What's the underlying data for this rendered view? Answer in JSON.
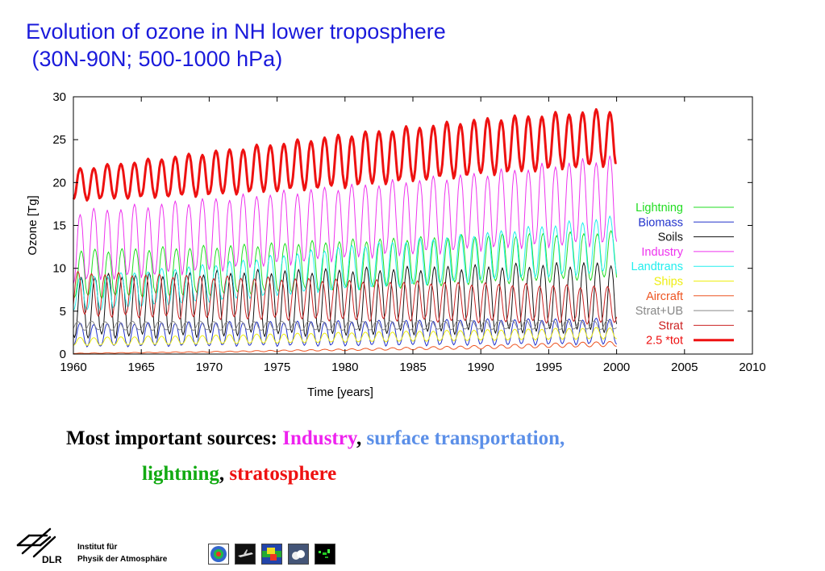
{
  "title": {
    "line1": "Evolution of ozone in NH lower troposphere",
    "line2": " (30N-90N; 500-1000 hPa)"
  },
  "chart_data": {
    "type": "line",
    "xlabel": "Time [years]",
    "ylabel": "Ozone [Tg]",
    "xlim": [
      1960,
      2010
    ],
    "ylim": [
      0,
      30
    ],
    "x_ticks": [
      1960,
      1965,
      1970,
      1975,
      1980,
      1985,
      1990,
      1995,
      2000,
      2005,
      2010
    ],
    "y_ticks": [
      0,
      5,
      10,
      15,
      20,
      25,
      30
    ],
    "grid": false,
    "legend_position": "right",
    "x_start": 1960,
    "x_end": 2000,
    "samples_per_year": 12,
    "series": [
      {
        "name": "Lightning",
        "color": "#22dd22",
        "linewidth": 1,
        "annual_min": [
          6.6,
          7.0,
          7.6,
          8.3,
          8.8
        ],
        "annual_max": [
          12.0,
          12.5,
          13.2,
          13.8,
          14.2
        ],
        "peak_month": 7
      },
      {
        "name": "Biomass",
        "color": "#2233cc",
        "linewidth": 1,
        "annual_min": [
          0.9,
          1.0,
          1.0,
          1.1,
          1.2
        ],
        "annual_max": [
          3.5,
          3.7,
          3.8,
          4.0,
          4.1
        ],
        "peak_month": 6
      },
      {
        "name": "Soils",
        "color": "#111111",
        "linewidth": 1,
        "annual_min": [
          2.0,
          2.2,
          2.4,
          2.6,
          2.8
        ],
        "annual_max": [
          9.0,
          9.5,
          9.8,
          10.2,
          10.6
        ],
        "peak_month": 7
      },
      {
        "name": "Industry",
        "color": "#ee33ee",
        "linewidth": 1,
        "annual_min": [
          8.5,
          9.8,
          11.2,
          12.3,
          13.0
        ],
        "annual_max": [
          16.5,
          18.0,
          19.5,
          21.0,
          23.0
        ],
        "peak_month": 6
      },
      {
        "name": "Landtrans",
        "color": "#22eeee",
        "linewidth": 1,
        "annual_min": [
          5.0,
          6.2,
          7.6,
          8.6,
          9.6
        ],
        "annual_max": [
          8.8,
          10.4,
          12.5,
          14.0,
          16.0
        ],
        "peak_month": 6
      },
      {
        "name": "Ships",
        "color": "#eeee11",
        "linewidth": 1,
        "annual_min": [
          1.0,
          1.2,
          1.4,
          1.6,
          1.8
        ],
        "annual_max": [
          1.9,
          2.2,
          2.5,
          2.8,
          3.1
        ],
        "peak_month": 6
      },
      {
        "name": "Aircraft",
        "color": "#ee5522",
        "linewidth": 1,
        "annual_min": [
          0.05,
          0.2,
          0.4,
          0.6,
          0.9
        ],
        "annual_max": [
          0.1,
          0.3,
          0.6,
          1.0,
          1.5
        ],
        "peak_month": 6
      },
      {
        "name": "Strat+UB",
        "color": "#888888",
        "linewidth": 1,
        "annual_min": [
          2.8,
          2.8,
          2.8,
          2.9,
          2.9
        ],
        "annual_max": [
          3.8,
          3.8,
          3.8,
          3.9,
          3.9
        ],
        "peak_month": 4
      },
      {
        "name": "Strat",
        "color": "#cc2222",
        "linewidth": 1,
        "annual_min": [
          4.5,
          4.2,
          4.0,
          3.8,
          3.6
        ],
        "annual_max": [
          9.5,
          9.0,
          8.6,
          8.2,
          7.8
        ],
        "peak_month": 4
      },
      {
        "name": "2.5 *tot",
        "color": "#ee1111",
        "linewidth": 3,
        "annual_min": [
          18.0,
          18.6,
          19.6,
          21.0,
          22.2
        ],
        "annual_max": [
          21.5,
          23.5,
          25.5,
          27.3,
          28.5
        ],
        "peak_month": 6
      }
    ]
  },
  "summary": {
    "prefix": "Most important sources: ",
    "industry": "Industry",
    "comma1": ", ",
    "surface": "surface transportation,",
    "lightning": "lightning",
    "comma2": ", ",
    "stratosphere": "stratosphere",
    "colors": {
      "prefix": "#000000",
      "industry": "#ee22ee",
      "surface": "#5b8fe8",
      "lightning": "#11aa11",
      "stratosphere": "#ee1111"
    }
  },
  "footer": {
    "logo_text": "DLR",
    "institute_line1": "Institut für",
    "institute_line2": "Physik der Atmosphäre",
    "thumbnails": [
      "globe-thumbnail",
      "aircraft-thumbnail",
      "map-thumbnail",
      "cloud-thumbnail",
      "satellite-thumbnail"
    ]
  }
}
